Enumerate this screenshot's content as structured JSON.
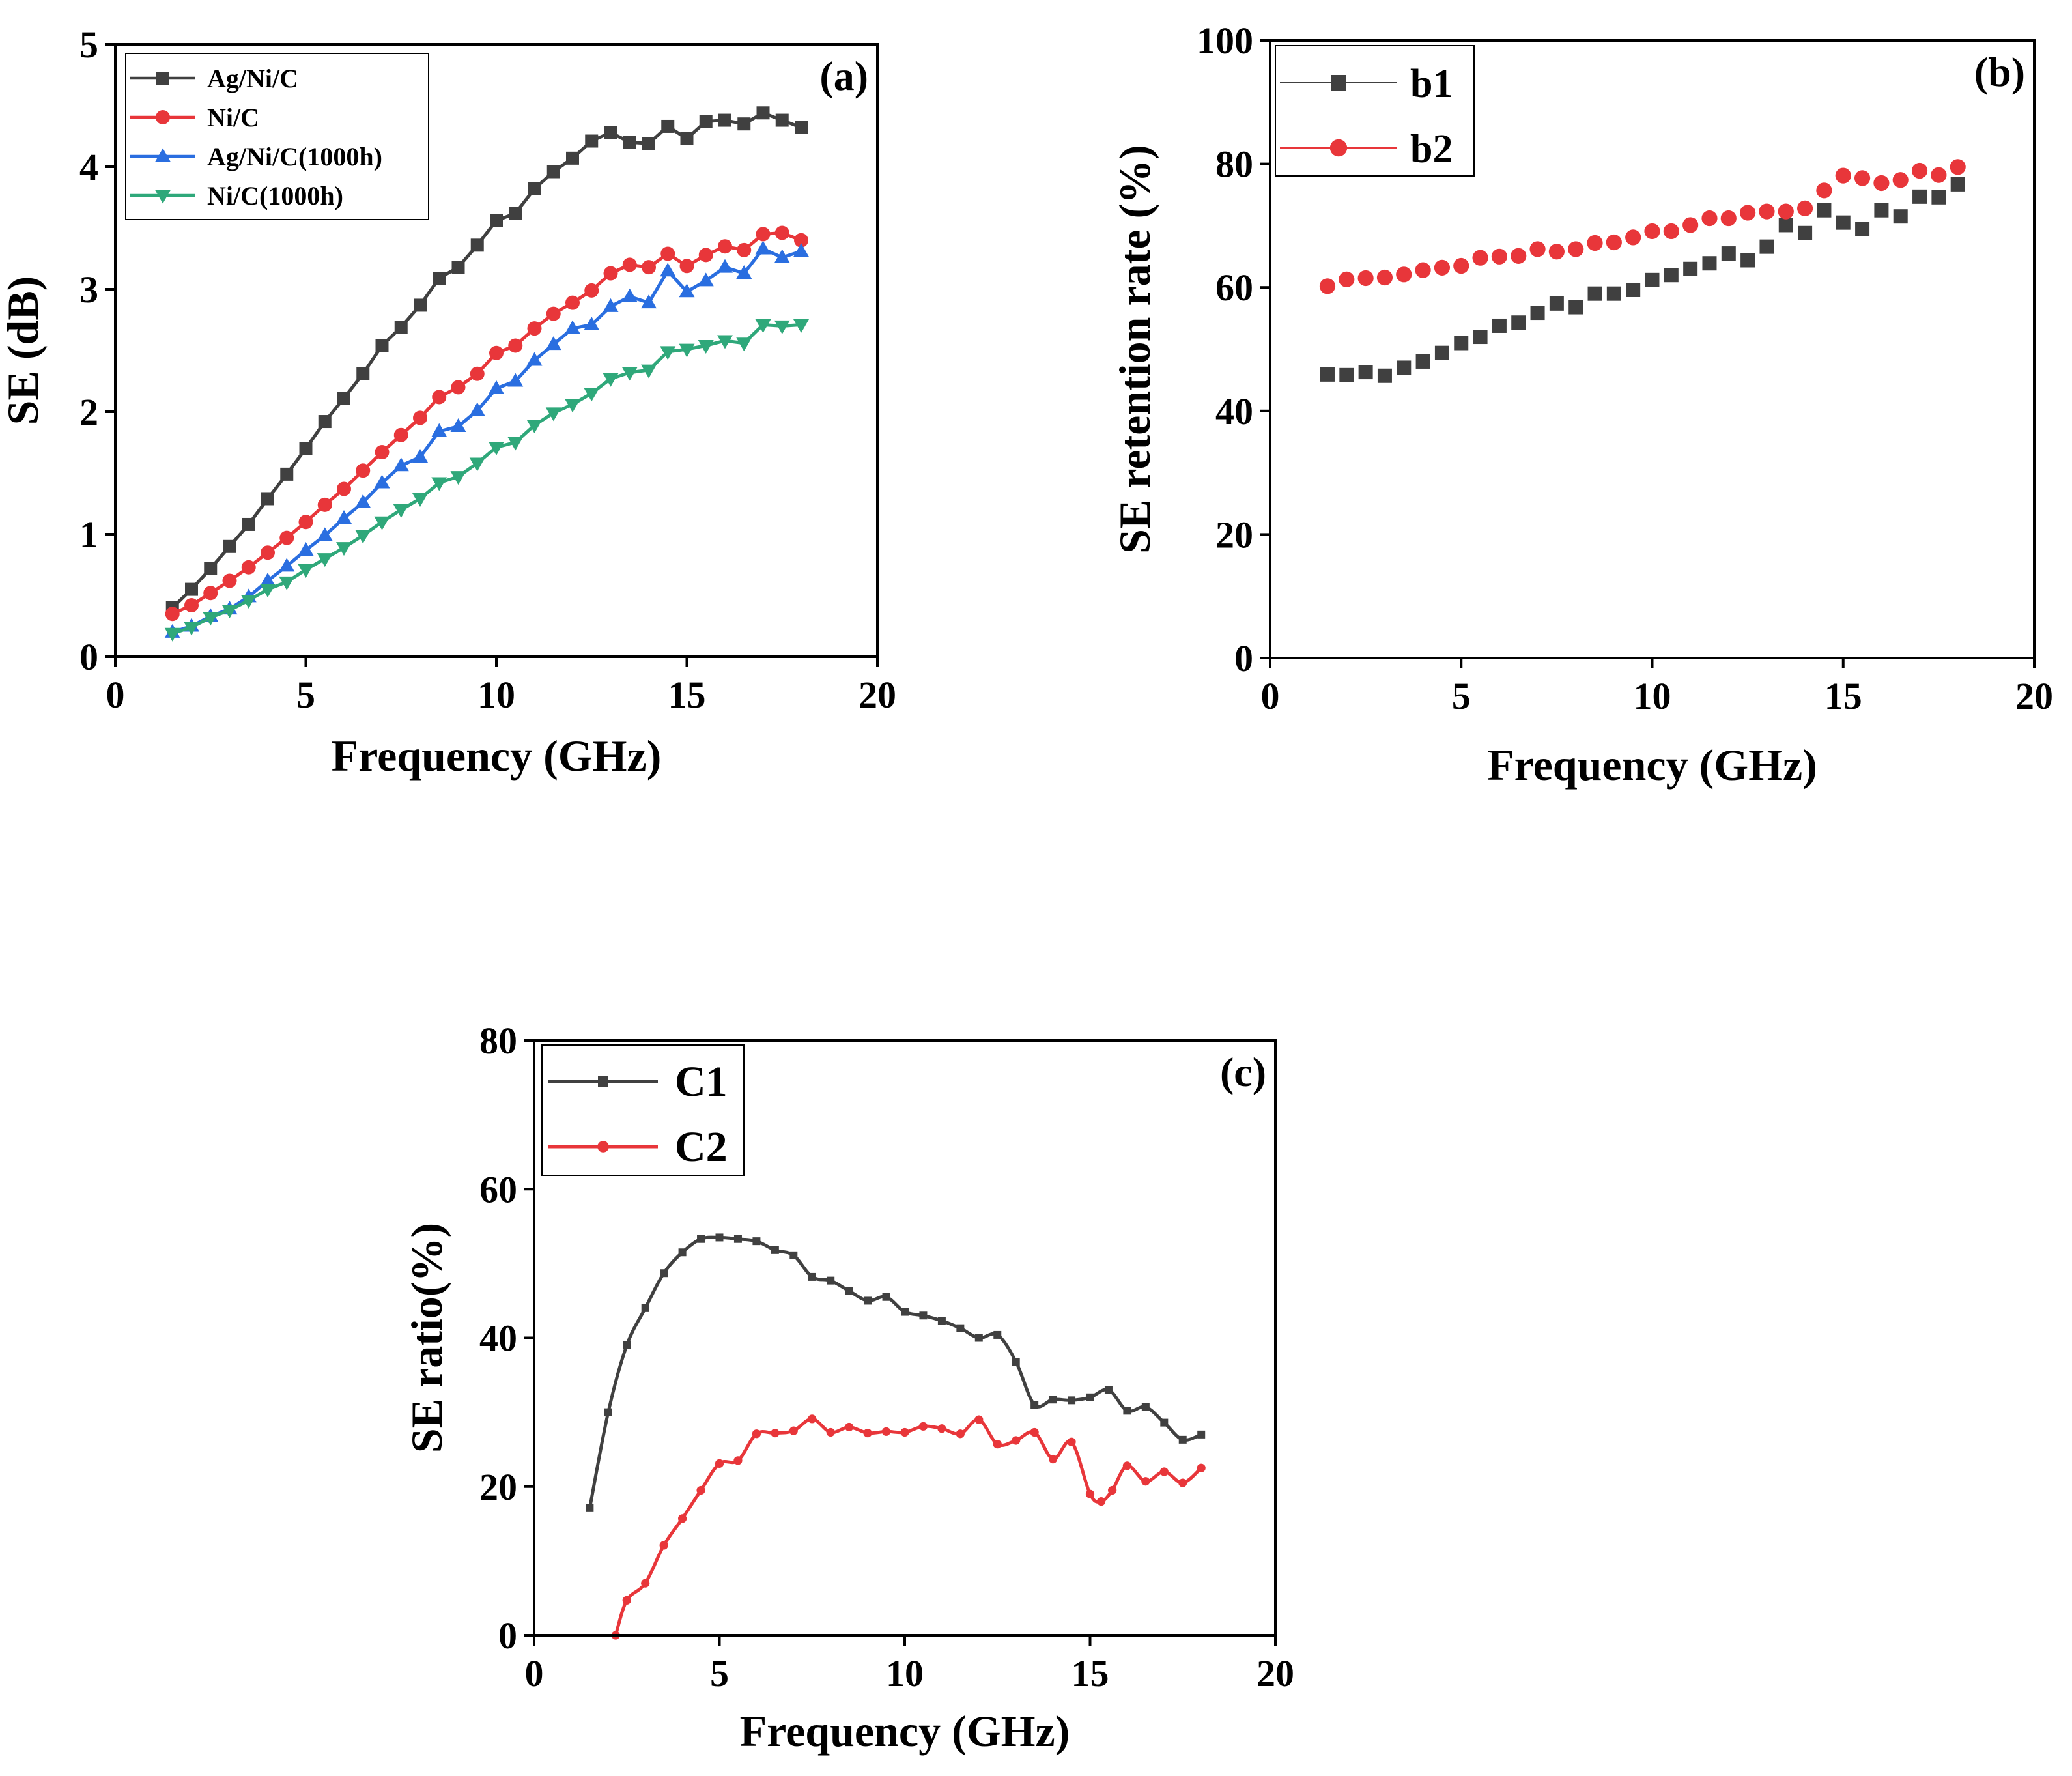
{
  "chart_data": [
    {
      "id": "a",
      "type": "line",
      "panel_label": "(a)",
      "xlabel": "Frequency (GHz)",
      "ylabel": "SE (dB)",
      "xlim": [
        0,
        20
      ],
      "ylim": [
        0,
        5
      ],
      "xticks": [
        0,
        5,
        10,
        15,
        20
      ],
      "yticks": [
        0,
        1,
        2,
        3,
        4,
        5
      ],
      "legend_position": "top-left",
      "grid": false,
      "x": [
        1.5,
        2.0,
        2.5,
        3.0,
        3.5,
        4.0,
        4.5,
        5.0,
        5.5,
        6.0,
        6.5,
        7.0,
        7.5,
        8.0,
        8.5,
        9.0,
        9.5,
        10.0,
        10.5,
        11.0,
        11.5,
        12.0,
        12.5,
        13.0,
        13.5,
        14.0,
        14.5,
        15.0,
        15.5,
        16.0,
        16.5,
        17.0,
        17.5,
        18.0
      ],
      "series": [
        {
          "name": "Ag/Ni/C",
          "color": "#404040",
          "marker": "square",
          "values": [
            0.4,
            0.55,
            0.72,
            0.9,
            1.08,
            1.29,
            1.49,
            1.7,
            1.92,
            2.11,
            2.31,
            2.54,
            2.69,
            2.87,
            3.09,
            3.18,
            3.36,
            3.56,
            3.62,
            3.82,
            3.96,
            4.07,
            4.21,
            4.28,
            4.2,
            4.19,
            4.33,
            4.23,
            4.37,
            4.38,
            4.35,
            4.44,
            4.38,
            4.32
          ]
        },
        {
          "name": "Ni/C",
          "color": "#e8363a",
          "marker": "circle",
          "values": [
            0.35,
            0.42,
            0.52,
            0.62,
            0.73,
            0.85,
            0.97,
            1.1,
            1.24,
            1.37,
            1.52,
            1.67,
            1.81,
            1.95,
            2.12,
            2.2,
            2.31,
            2.48,
            2.54,
            2.68,
            2.8,
            2.89,
            2.99,
            3.13,
            3.2,
            3.18,
            3.29,
            3.19,
            3.28,
            3.35,
            3.32,
            3.45,
            3.46,
            3.4
          ]
        },
        {
          "name": "Ag/Ni/C(1000h)",
          "color": "#2a6ee0",
          "marker": "triangle-up",
          "values": [
            0.2,
            0.25,
            0.33,
            0.39,
            0.49,
            0.62,
            0.74,
            0.87,
            0.99,
            1.13,
            1.26,
            1.42,
            1.56,
            1.63,
            1.84,
            1.88,
            2.01,
            2.19,
            2.25,
            2.42,
            2.55,
            2.68,
            2.71,
            2.86,
            2.94,
            2.89,
            3.15,
            2.98,
            3.07,
            3.18,
            3.13,
            3.33,
            3.26,
            3.31
          ]
        },
        {
          "name": "Ni/C(1000h)",
          "color": "#2fa87a",
          "marker": "triangle-down",
          "values": [
            0.19,
            0.24,
            0.32,
            0.38,
            0.46,
            0.55,
            0.61,
            0.71,
            0.8,
            0.89,
            0.99,
            1.1,
            1.2,
            1.29,
            1.42,
            1.47,
            1.58,
            1.71,
            1.75,
            1.89,
            1.99,
            2.06,
            2.15,
            2.27,
            2.32,
            2.34,
            2.49,
            2.51,
            2.54,
            2.58,
            2.56,
            2.71,
            2.7,
            2.71
          ]
        }
      ]
    },
    {
      "id": "b",
      "type": "scatter",
      "panel_label": "(b)",
      "xlabel": "Frequency (GHz)",
      "ylabel": "SE retention rate (%)",
      "xlim": [
        0,
        20
      ],
      "ylim": [
        0,
        100
      ],
      "xticks": [
        0,
        5,
        10,
        15,
        20
      ],
      "yticks": [
        0,
        20,
        40,
        60,
        80,
        100
      ],
      "legend_position": "top-left",
      "grid": false,
      "x": [
        1.5,
        2.0,
        2.5,
        3.0,
        3.5,
        4.0,
        4.5,
        5.0,
        5.5,
        6.0,
        6.5,
        7.0,
        7.5,
        8.0,
        8.5,
        9.0,
        9.5,
        10.0,
        10.5,
        11.0,
        11.5,
        12.0,
        12.5,
        13.0,
        13.5,
        14.0,
        14.5,
        15.0,
        15.5,
        16.0,
        16.5,
        17.0,
        17.5,
        18.0
      ],
      "series": [
        {
          "name": "b1",
          "color": "#404040",
          "marker": "square",
          "values": [
            45.9,
            45.8,
            46.3,
            45.7,
            47.0,
            48.0,
            49.4,
            51.0,
            52.0,
            53.8,
            54.3,
            55.9,
            57.4,
            56.8,
            59.0,
            59.0,
            59.6,
            61.2,
            62.0,
            63.0,
            63.9,
            65.5,
            64.4,
            66.6,
            70.1,
            68.8,
            72.5,
            70.5,
            69.5,
            72.5,
            71.5,
            74.7,
            74.6,
            76.7
          ]
        },
        {
          "name": "b2",
          "color": "#e8363a",
          "marker": "circle",
          "values": [
            60.2,
            61.3,
            61.5,
            61.6,
            62.1,
            62.8,
            63.2,
            63.5,
            64.8,
            65.0,
            65.1,
            66.2,
            65.8,
            66.2,
            67.2,
            67.3,
            68.1,
            69.1,
            69.1,
            70.1,
            71.2,
            71.2,
            72.1,
            72.3,
            72.3,
            72.8,
            75.7,
            78.1,
            77.7,
            76.9,
            77.4,
            78.9,
            78.2,
            79.5
          ]
        }
      ]
    },
    {
      "id": "c",
      "type": "line",
      "panel_label": "(c)",
      "xlabel": "Frequency (GHz)",
      "ylabel": "SE ratio(%)",
      "xlim": [
        0,
        20
      ],
      "ylim": [
        0,
        80
      ],
      "xticks": [
        0,
        5,
        10,
        15,
        20
      ],
      "yticks": [
        0,
        20,
        40,
        60,
        80
      ],
      "legend_position": "top-left",
      "grid": false,
      "series": [
        {
          "name": "C1",
          "color": "#404040",
          "marker": "square",
          "x": [
            1.5,
            2.0,
            2.5,
            3.0,
            3.5,
            4.0,
            4.5,
            5.0,
            5.5,
            6.0,
            6.5,
            7.0,
            7.5,
            8.0,
            8.5,
            9.0,
            9.5,
            10.0,
            10.5,
            11.0,
            11.5,
            12.0,
            12.5,
            13.0,
            13.5,
            14.0,
            14.5,
            15.0,
            15.5,
            16.0,
            16.5,
            17.0,
            17.5,
            18.0
          ],
          "values": [
            17.1,
            30.0,
            39.0,
            44.0,
            48.7,
            51.5,
            53.3,
            53.5,
            53.3,
            53.0,
            51.8,
            51.1,
            48.2,
            47.7,
            46.3,
            45.0,
            45.5,
            43.5,
            43.0,
            42.3,
            41.3,
            40.0,
            40.4,
            36.8,
            31.0,
            31.7,
            31.6,
            32.0,
            33.0,
            30.2,
            30.7,
            28.6,
            26.3,
            27.0
          ]
        },
        {
          "name": "C2",
          "color": "#e8363a",
          "marker": "circle",
          "x": [
            2.2,
            2.5,
            3.0,
            3.5,
            4.0,
            4.5,
            5.0,
            5.5,
            6.0,
            6.5,
            7.0,
            7.5,
            8.0,
            8.5,
            9.0,
            9.5,
            10.0,
            10.5,
            11.0,
            11.5,
            12.0,
            12.5,
            13.0,
            13.5,
            14.0,
            14.5,
            15.0,
            15.3,
            15.6,
            16.0,
            16.5,
            17.0,
            17.5,
            18.0
          ],
          "values": [
            0.0,
            4.7,
            7.0,
            12.1,
            15.7,
            19.5,
            23.1,
            23.5,
            27.1,
            27.2,
            27.5,
            29.1,
            27.3,
            28.0,
            27.2,
            27.4,
            27.3,
            28.1,
            27.8,
            27.1,
            29.0,
            25.7,
            26.2,
            27.3,
            23.7,
            26.0,
            19.0,
            18.0,
            19.5,
            22.8,
            20.7,
            22.0,
            20.5,
            22.5
          ]
        }
      ]
    }
  ]
}
